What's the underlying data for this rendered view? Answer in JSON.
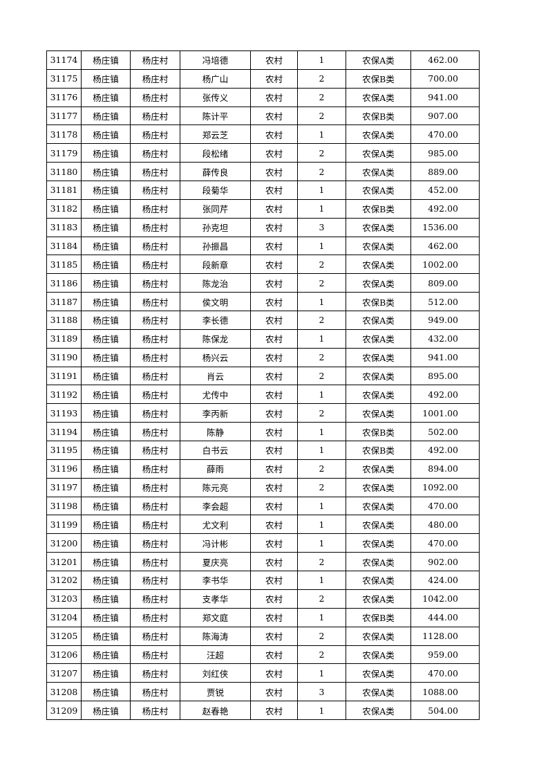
{
  "rows": [
    [
      "31174",
      "杨庄镇",
      "杨庄村",
      "冯培德",
      "农村",
      "1",
      "农保A类",
      "462.00"
    ],
    [
      "31175",
      "杨庄镇",
      "杨庄村",
      "杨广山",
      "农村",
      "2",
      "农保B类",
      "700.00"
    ],
    [
      "31176",
      "杨庄镇",
      "杨庄村",
      "张传义",
      "农村",
      "2",
      "农保A类",
      "941.00"
    ],
    [
      "31177",
      "杨庄镇",
      "杨庄村",
      "陈计平",
      "农村",
      "2",
      "农保B类",
      "907.00"
    ],
    [
      "31178",
      "杨庄镇",
      "杨庄村",
      "郑云芝",
      "农村",
      "1",
      "农保A类",
      "470.00"
    ],
    [
      "31179",
      "杨庄镇",
      "杨庄村",
      "段松绪",
      "农村",
      "2",
      "农保A类",
      "985.00"
    ],
    [
      "31180",
      "杨庄镇",
      "杨庄村",
      "薛传良",
      "农村",
      "2",
      "农保A类",
      "889.00"
    ],
    [
      "31181",
      "杨庄镇",
      "杨庄村",
      "段菊华",
      "农村",
      "1",
      "农保A类",
      "452.00"
    ],
    [
      "31182",
      "杨庄镇",
      "杨庄村",
      "张同芹",
      "农村",
      "1",
      "农保B类",
      "492.00"
    ],
    [
      "31183",
      "杨庄镇",
      "杨庄村",
      "孙克坦",
      "农村",
      "3",
      "农保A类",
      "1536.00"
    ],
    [
      "31184",
      "杨庄镇",
      "杨庄村",
      "孙振昌",
      "农村",
      "1",
      "农保A类",
      "462.00"
    ],
    [
      "31185",
      "杨庄镇",
      "杨庄村",
      "段新章",
      "农村",
      "2",
      "农保A类",
      "1002.00"
    ],
    [
      "31186",
      "杨庄镇",
      "杨庄村",
      "陈龙治",
      "农村",
      "2",
      "农保A类",
      "809.00"
    ],
    [
      "31187",
      "杨庄镇",
      "杨庄村",
      "侯文明",
      "农村",
      "1",
      "农保B类",
      "512.00"
    ],
    [
      "31188",
      "杨庄镇",
      "杨庄村",
      "李长德",
      "农村",
      "2",
      "农保A类",
      "949.00"
    ],
    [
      "31189",
      "杨庄镇",
      "杨庄村",
      "陈保龙",
      "农村",
      "1",
      "农保A类",
      "432.00"
    ],
    [
      "31190",
      "杨庄镇",
      "杨庄村",
      "杨兴云",
      "农村",
      "2",
      "农保A类",
      "941.00"
    ],
    [
      "31191",
      "杨庄镇",
      "杨庄村",
      "肖云",
      "农村",
      "2",
      "农保A类",
      "895.00"
    ],
    [
      "31192",
      "杨庄镇",
      "杨庄村",
      "尤传中",
      "农村",
      "1",
      "农保A类",
      "492.00"
    ],
    [
      "31193",
      "杨庄镇",
      "杨庄村",
      "李丙新",
      "农村",
      "2",
      "农保A类",
      "1001.00"
    ],
    [
      "31194",
      "杨庄镇",
      "杨庄村",
      "陈静",
      "农村",
      "1",
      "农保B类",
      "502.00"
    ],
    [
      "31195",
      "杨庄镇",
      "杨庄村",
      "白书云",
      "农村",
      "1",
      "农保B类",
      "492.00"
    ],
    [
      "31196",
      "杨庄镇",
      "杨庄村",
      "薛雨",
      "农村",
      "2",
      "农保A类",
      "894.00"
    ],
    [
      "31197",
      "杨庄镇",
      "杨庄村",
      "陈元亮",
      "农村",
      "2",
      "农保A类",
      "1092.00"
    ],
    [
      "31198",
      "杨庄镇",
      "杨庄村",
      "李会超",
      "农村",
      "1",
      "农保A类",
      "470.00"
    ],
    [
      "31199",
      "杨庄镇",
      "杨庄村",
      "尤文利",
      "农村",
      "1",
      "农保A类",
      "480.00"
    ],
    [
      "31200",
      "杨庄镇",
      "杨庄村",
      "冯计彬",
      "农村",
      "1",
      "农保A类",
      "470.00"
    ],
    [
      "31201",
      "杨庄镇",
      "杨庄村",
      "夏庆亮",
      "农村",
      "2",
      "农保A类",
      "902.00"
    ],
    [
      "31202",
      "杨庄镇",
      "杨庄村",
      "李书华",
      "农村",
      "1",
      "农保A类",
      "424.00"
    ],
    [
      "31203",
      "杨庄镇",
      "杨庄村",
      "支孝华",
      "农村",
      "2",
      "农保A类",
      "1042.00"
    ],
    [
      "31204",
      "杨庄镇",
      "杨庄村",
      "郑文庭",
      "农村",
      "1",
      "农保B类",
      "444.00"
    ],
    [
      "31205",
      "杨庄镇",
      "杨庄村",
      "陈海涛",
      "农村",
      "2",
      "农保A类",
      "1128.00"
    ],
    [
      "31206",
      "杨庄镇",
      "杨庄村",
      "汪超",
      "农村",
      "2",
      "农保A类",
      "959.00"
    ],
    [
      "31207",
      "杨庄镇",
      "杨庄村",
      "刘红侠",
      "农村",
      "1",
      "农保A类",
      "470.00"
    ],
    [
      "31208",
      "杨庄镇",
      "杨庄村",
      "贾锐",
      "农村",
      "3",
      "农保A类",
      "1088.00"
    ],
    [
      "31209",
      "杨庄镇",
      "杨庄村",
      "赵春艳",
      "农村",
      "1",
      "农保A类",
      "504.00"
    ]
  ]
}
